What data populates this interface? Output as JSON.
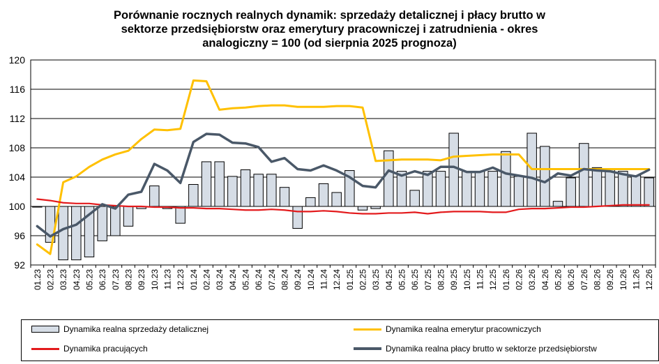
{
  "title_lines": [
    "Porównanie rocznych realnych dynamik: sprzedaży detalicznej i płacy brutto w",
    "sektorze przedsiębiorstw oraz emerytury pracowniczej i zatrudnienia - okres",
    "analogiczny = 100 (od sierpnia 2025 prognoza)"
  ],
  "colors": {
    "bars_fill": "#d6dde6",
    "bars_stroke": "#000000",
    "emerytury": "#ffc000",
    "pracujacych": "#e31a1c",
    "placy": "#4a5868",
    "grid": "#000000"
  },
  "legend": [
    {
      "key": "sprzedaz",
      "label": "Dynamika realna sprzedaży detalicznej",
      "kind": "bar"
    },
    {
      "key": "emerytury",
      "label": "Dynamika realna emerytur pracowniczych",
      "kind": "line"
    },
    {
      "key": "pracujacych",
      "label": "Dynamika pracujących",
      "kind": "line"
    },
    {
      "key": "placy",
      "label": "Dynamika realna płacy brutto w sektorze przedsiębiorstw",
      "kind": "line"
    }
  ],
  "chart_data": {
    "type": "bar",
    "title": "Porównanie rocznych realnych dynamik: sprzedaży detalicznej i płacy brutto w sektorze przedsiębiorstw oraz emerytury pracowniczej i zatrudnienia - okres analogiczny = 100 (od sierpnia 2025 prognoza)",
    "xlabel": "",
    "ylabel": "",
    "ylim": [
      92,
      120
    ],
    "yticks": [
      92,
      96,
      100,
      104,
      108,
      112,
      116,
      120
    ],
    "bar_baseline": 100,
    "grid": "horizontal",
    "legend_position": "bottom",
    "categories": [
      "01.23",
      "02.23",
      "03.23",
      "04.23",
      "05.23",
      "06.23",
      "07.23",
      "08.23",
      "09.23",
      "10.23",
      "11.23",
      "12.23",
      "01.24",
      "02.24",
      "03.24",
      "04.24",
      "05.24",
      "06.24",
      "07.24",
      "08.24",
      "09.24",
      "10.24",
      "11.24",
      "12.24",
      "01.25",
      "02.25",
      "03.25",
      "04.25",
      "05.25",
      "06.25",
      "07.25",
      "08.25",
      "09.25",
      "10.25",
      "11.25",
      "12.25",
      "01.26",
      "02.26",
      "03.26",
      "04.26",
      "05.26",
      "06.26",
      "07.26",
      "08.26",
      "09.26",
      "10.26",
      "11.26",
      "12.26"
    ],
    "series": [
      {
        "name": "Dynamika realna sprzedaży detalicznej",
        "kind": "bar",
        "values": [
          99.9,
          95.1,
          92.7,
          92.7,
          93.1,
          95.3,
          96.0,
          97.3,
          99.7,
          102.8,
          99.7,
          97.7,
          103.0,
          106.1,
          106.1,
          104.1,
          105.0,
          104.4,
          104.4,
          102.6,
          97.0,
          101.2,
          103.1,
          101.9,
          104.9,
          99.5,
          99.7,
          107.6,
          104.8,
          102.2,
          104.8,
          104.8,
          110.0,
          104.8,
          104.8,
          104.8,
          107.5,
          104.1,
          110.0,
          108.2,
          100.7,
          103.9,
          108.6,
          105.3,
          105.0,
          104.8,
          104.2,
          103.9
        ]
      },
      {
        "name": "Dynamika realna emerytur pracowniczych",
        "kind": "line",
        "color_key": "emerytury",
        "values": [
          94.8,
          93.5,
          103.3,
          104.1,
          105.4,
          106.4,
          107.1,
          107.6,
          109.2,
          110.5,
          110.4,
          110.6,
          117.2,
          117.1,
          113.2,
          113.4,
          113.5,
          113.7,
          113.8,
          113.8,
          113.6,
          113.6,
          113.6,
          113.7,
          113.7,
          113.5,
          106.2,
          106.3,
          106.4,
          106.4,
          106.4,
          106.3,
          106.8,
          106.9,
          107.0,
          107.1,
          107.1,
          107.1,
          105.1,
          105.1,
          105.1,
          105.1,
          105.1,
          105.1,
          105.1,
          105.1,
          105.1,
          105.1
        ]
      },
      {
        "name": "Dynamika pracujących",
        "kind": "line",
        "color_key": "pracujacych",
        "values": [
          101.0,
          100.8,
          100.5,
          100.4,
          100.4,
          100.2,
          100.1,
          100.0,
          100.0,
          99.9,
          99.9,
          99.8,
          99.8,
          99.7,
          99.7,
          99.6,
          99.5,
          99.5,
          99.6,
          99.5,
          99.3,
          99.3,
          99.4,
          99.3,
          99.1,
          99.0,
          99.0,
          99.1,
          99.1,
          99.2,
          99.0,
          99.2,
          99.3,
          99.3,
          99.3,
          99.2,
          99.2,
          99.6,
          99.7,
          99.7,
          99.8,
          99.9,
          99.9,
          100.0,
          100.1,
          100.2,
          100.2,
          100.2
        ]
      },
      {
        "name": "Dynamika realna płacy brutto w sektorze przedsiębiorstw",
        "kind": "line",
        "color_key": "placy",
        "values": [
          97.3,
          95.9,
          96.9,
          97.5,
          98.9,
          100.3,
          99.7,
          101.6,
          102.0,
          105.8,
          104.9,
          103.2,
          108.8,
          109.9,
          109.8,
          108.7,
          108.6,
          108.1,
          106.1,
          106.6,
          105.1,
          104.9,
          105.6,
          104.9,
          104.0,
          102.8,
          102.6,
          104.9,
          104.2,
          104.8,
          104.3,
          105.4,
          105.4,
          104.7,
          104.7,
          105.3,
          104.5,
          104.2,
          103.9,
          103.3,
          104.5,
          104.2,
          105.1,
          104.9,
          104.8,
          104.4,
          104.1,
          105.0
        ]
      }
    ]
  }
}
